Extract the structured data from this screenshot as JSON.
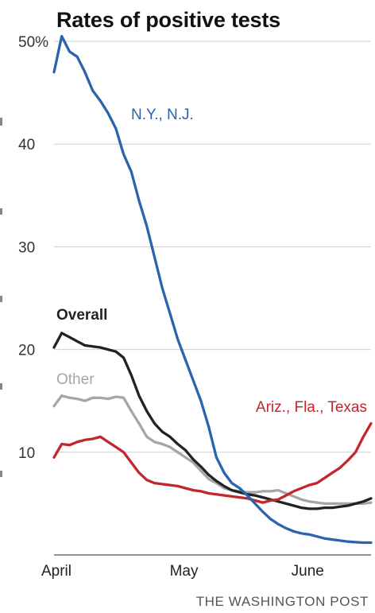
{
  "credit": "THE WASHINGTON POST",
  "chart_data": {
    "type": "line",
    "title": "Rates of positive tests",
    "xlabel": "",
    "ylabel": "",
    "x_ticks": [
      "April",
      "May",
      "June"
    ],
    "y_ticks": [
      "50%",
      "40",
      "30",
      "20",
      "10"
    ],
    "ylim": [
      0,
      52
    ],
    "grid": true,
    "legend": "inline labels",
    "x": [
      0,
      2,
      4,
      6,
      8,
      10,
      12,
      14,
      16,
      18,
      20,
      22,
      24,
      26,
      28,
      30,
      32,
      34,
      36,
      38,
      40,
      42,
      44,
      46,
      48,
      50,
      52,
      54,
      56,
      58,
      60,
      62,
      64,
      66,
      68,
      70,
      72,
      74,
      76,
      78,
      80,
      82
    ],
    "series": [
      {
        "name": "N.Y., N.J.",
        "color": "#2b64ad",
        "values": [
          47,
          50.5,
          49,
          48.5,
          47,
          45.2,
          44.2,
          43,
          41.5,
          39,
          37.3,
          34.5,
          32,
          29,
          26,
          23.5,
          21,
          19,
          17,
          15,
          12.5,
          9.5,
          8,
          7,
          6.5,
          5.8,
          5,
          4.2,
          3.5,
          3,
          2.6,
          2.3,
          2.1,
          2,
          1.8,
          1.6,
          1.5,
          1.4,
          1.3,
          1.25,
          1.2,
          1.2
        ]
      },
      {
        "name": "Overall",
        "color": "#222222",
        "values": [
          20.2,
          21.6,
          21.2,
          20.8,
          20.4,
          20.3,
          20.2,
          20,
          19.8,
          19.2,
          17.5,
          15.5,
          14,
          12.8,
          12,
          11.5,
          10.8,
          10.2,
          9.3,
          8.6,
          7.8,
          7.2,
          6.7,
          6.3,
          6.1,
          5.9,
          5.8,
          5.6,
          5.4,
          5.2,
          5,
          4.8,
          4.6,
          4.5,
          4.5,
          4.6,
          4.6,
          4.7,
          4.8,
          5,
          5.2,
          5.5
        ]
      },
      {
        "name": "Other",
        "color": "#a6a6a6",
        "values": [
          14.5,
          15.5,
          15.3,
          15.2,
          15,
          15.3,
          15.3,
          15.2,
          15.4,
          15.3,
          14,
          12.8,
          11.5,
          11,
          10.8,
          10.5,
          10,
          9.5,
          9,
          8.2,
          7.4,
          7,
          6.5,
          6.3,
          6.2,
          6.1,
          6.1,
          6.2,
          6.2,
          6.3,
          6,
          5.7,
          5.4,
          5.2,
          5.1,
          5,
          5,
          5,
          5,
          5,
          5,
          5.1
        ]
      },
      {
        "name": "Ariz., Fla., Texas",
        "color": "#c1272d",
        "values": [
          9.5,
          10.8,
          10.7,
          11,
          11.2,
          11.3,
          11.5,
          11,
          10.5,
          10,
          9,
          8,
          7.3,
          7,
          6.9,
          6.8,
          6.7,
          6.5,
          6.3,
          6.2,
          6,
          5.9,
          5.8,
          5.7,
          5.6,
          5.5,
          5.3,
          5.1,
          5.3,
          5.4,
          5.8,
          6.2,
          6.5,
          6.8,
          7,
          7.5,
          8,
          8.5,
          9.2,
          10,
          11.5,
          12.8
        ]
      }
    ]
  }
}
